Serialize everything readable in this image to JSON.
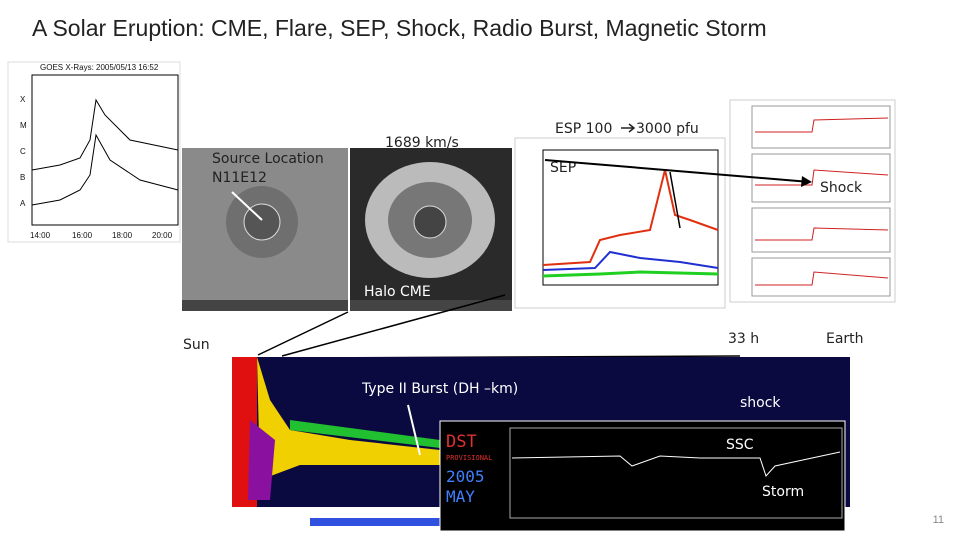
{
  "header": {
    "title": "A Solar Eruption: CME, Flare, SEP, Shock, Radio Burst, Magnetic Storm"
  },
  "goes": {
    "title": "GOES X-Rays: 2005/05/13 16:52",
    "classes": [
      "X",
      "M",
      "C",
      "B",
      "A"
    ],
    "times": [
      "14:00",
      "16:00",
      "18:00",
      "20:00"
    ]
  },
  "annotations": {
    "source_location": [
      "Source Location",
      "N11E12"
    ],
    "speed": "1689 km/s",
    "esp_from": "ESP 100",
    "esp_to": "3000 pfu",
    "sep": "SEP",
    "shock_top": "Shock",
    "halo_cme": "Halo CME",
    "sun": "Sun",
    "travel_time": "33 h",
    "earth": "Earth",
    "type_ii": "Type II Burst (DH –km)",
    "shock_radio": "shock",
    "ssc": "SSC",
    "storm": "Storm"
  },
  "dst": {
    "title": "DST",
    "subtitle": "PROVISIONAL",
    "year": "2005",
    "month": "MAY"
  },
  "footer": {
    "page_number": "11"
  }
}
